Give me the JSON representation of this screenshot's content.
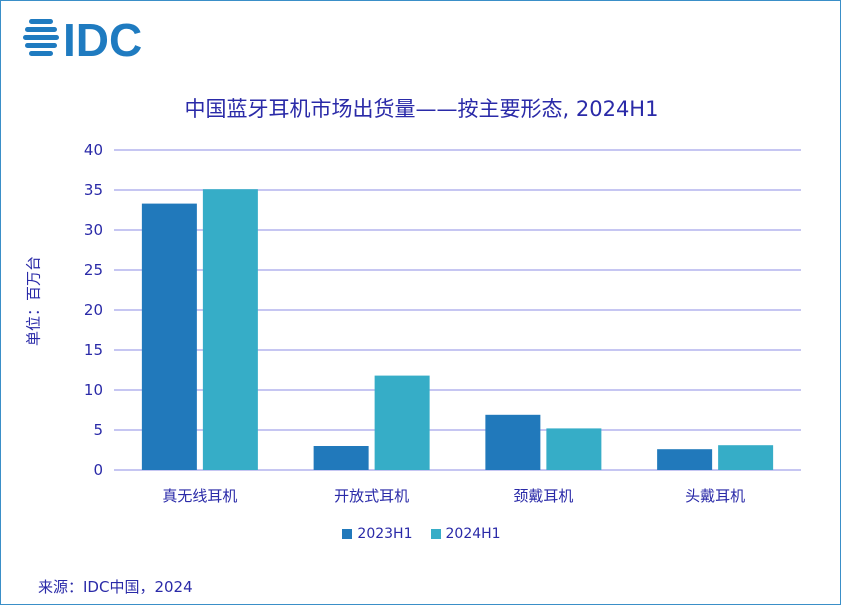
{
  "logo_text": "IDC",
  "chart_data": {
    "type": "bar",
    "title": "中国蓝牙耳机市场出货量——按主要形态, 2024H1",
    "ylabel": "单位：百万台",
    "xlabel": "",
    "ylim": [
      0,
      40
    ],
    "yticks": [
      0,
      5,
      10,
      15,
      20,
      25,
      30,
      35,
      40
    ],
    "grid": true,
    "legend_position": "bottom",
    "categories": [
      "真无线耳机",
      "开放式耳机",
      "颈戴耳机",
      "头戴耳机"
    ],
    "series": [
      {
        "name": "2023H1",
        "color": "#2179bb",
        "values": [
          33.3,
          3.0,
          6.9,
          2.6
        ]
      },
      {
        "name": "2024H1",
        "color": "#36adc7",
        "values": [
          35.1,
          11.8,
          5.2,
          3.1
        ]
      }
    ]
  },
  "source": "来源：IDC中国，2024"
}
